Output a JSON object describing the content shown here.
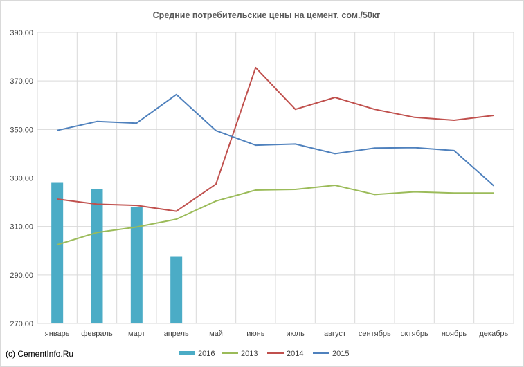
{
  "chart_data": {
    "type": "line",
    "title": "Средние потребительские цены на цемент,  сом./50кг",
    "categories": [
      "январь",
      "февраль",
      "март",
      "апрель",
      "май",
      "июнь",
      "июль",
      "август",
      "сентябрь",
      "октябрь",
      "ноябрь",
      "декабрь"
    ],
    "ylim": [
      270,
      390
    ],
    "yticks": [
      "270,00",
      "290,00",
      "310,00",
      "330,00",
      "350,00",
      "370,00",
      "390,00"
    ],
    "grid": true,
    "legend_position": "bottom",
    "series": [
      {
        "name": "2016",
        "kind": "bar",
        "color": "#4bacc6",
        "values": [
          328.0,
          325.5,
          318.0,
          297.5,
          null,
          null,
          null,
          null,
          null,
          null,
          null,
          null
        ]
      },
      {
        "name": "2013",
        "kind": "line",
        "color": "#9bbb59",
        "values": [
          302.5,
          307.5,
          309.8,
          313.0,
          320.5,
          325.0,
          325.3,
          327.0,
          323.2,
          324.3,
          323.8,
          323.8
        ]
      },
      {
        "name": "2014",
        "kind": "line",
        "color": "#c0504d",
        "values": [
          321.3,
          319.2,
          318.7,
          316.3,
          327.5,
          375.5,
          358.3,
          363.2,
          358.3,
          355.0,
          353.8,
          355.8
        ]
      },
      {
        "name": "2015",
        "kind": "line",
        "color": "#4f81bd",
        "values": [
          349.6,
          353.3,
          352.6,
          364.4,
          349.5,
          343.5,
          344.0,
          340.0,
          342.3,
          342.5,
          341.3,
          326.8
        ]
      }
    ],
    "credit": "(с) CementInfo.Ru"
  }
}
